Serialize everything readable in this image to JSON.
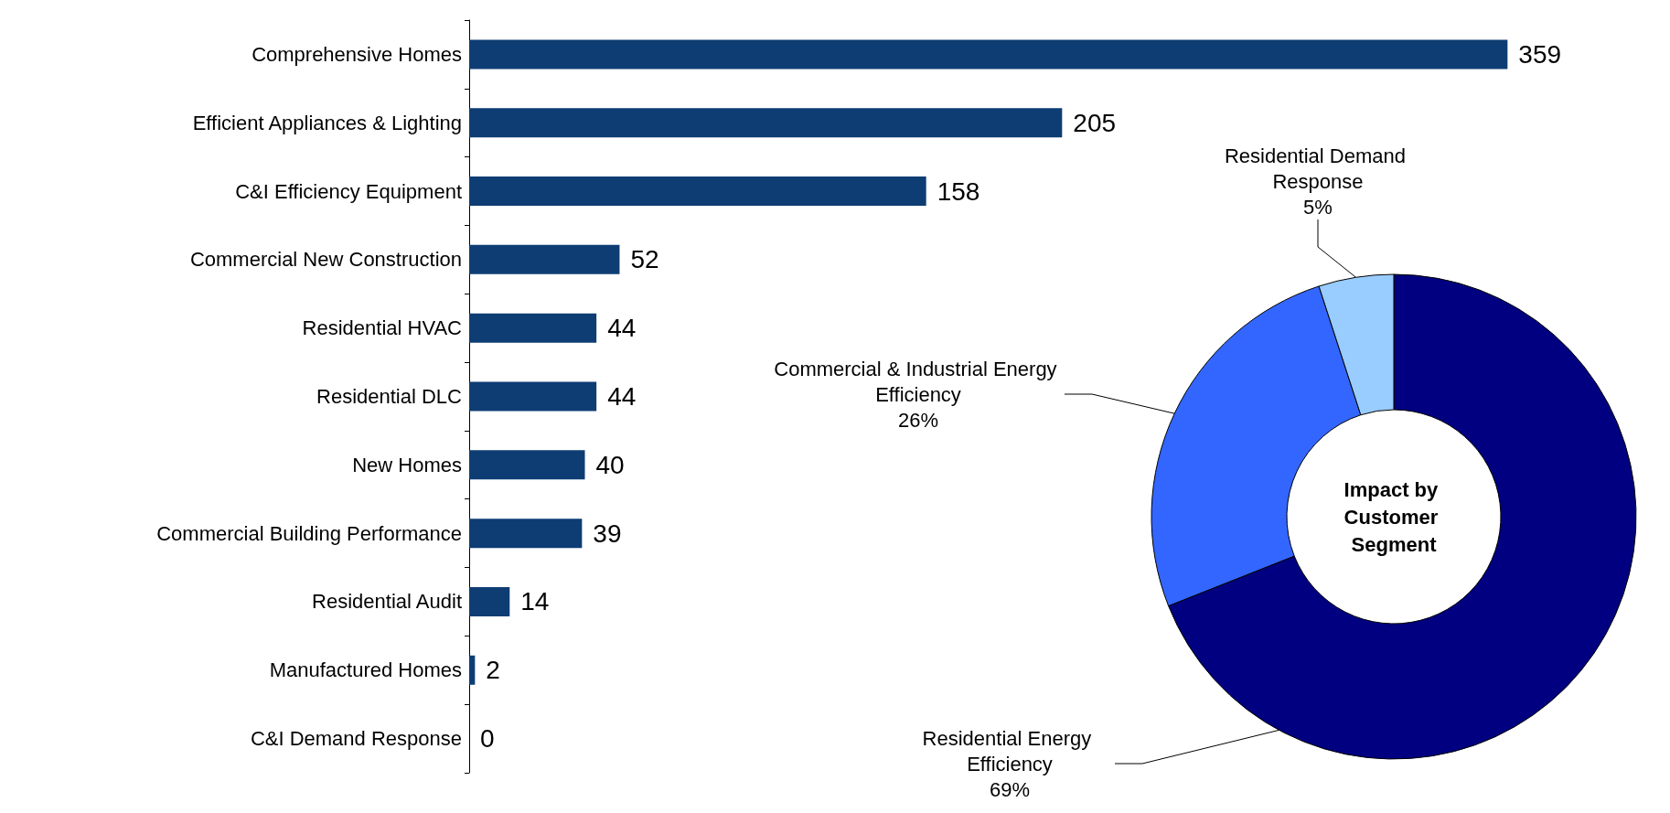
{
  "chart_data": [
    {
      "type": "bar",
      "orientation": "horizontal",
      "categories": [
        "Comprehensive Homes",
        "Efficient Appliances & Lighting",
        "C&I Efficiency Equipment",
        "Commercial New Construction",
        "Residential HVAC",
        "Residential DLC",
        "New Homes",
        "Commercial Building Performance",
        "Residential Audit",
        "Manufactured Homes",
        "C&I Demand Response"
      ],
      "values": [
        359,
        205,
        158,
        52,
        44,
        44,
        40,
        39,
        14,
        2,
        0
      ],
      "color": "#0e3d73",
      "data_labels": true,
      "legend": false
    },
    {
      "type": "donut",
      "title": "Impact by Customer Segment",
      "categories": [
        "Residential Energy Efficiency",
        "Commercial & Industrial Energy Efficiency",
        "Residential Demand Response"
      ],
      "values": [
        69,
        26,
        5
      ],
      "value_labels": [
        "69%",
        "26%",
        "5%"
      ],
      "colors": [
        "#000080",
        "#3366ff",
        "#99ccff"
      ],
      "legend": false
    }
  ]
}
